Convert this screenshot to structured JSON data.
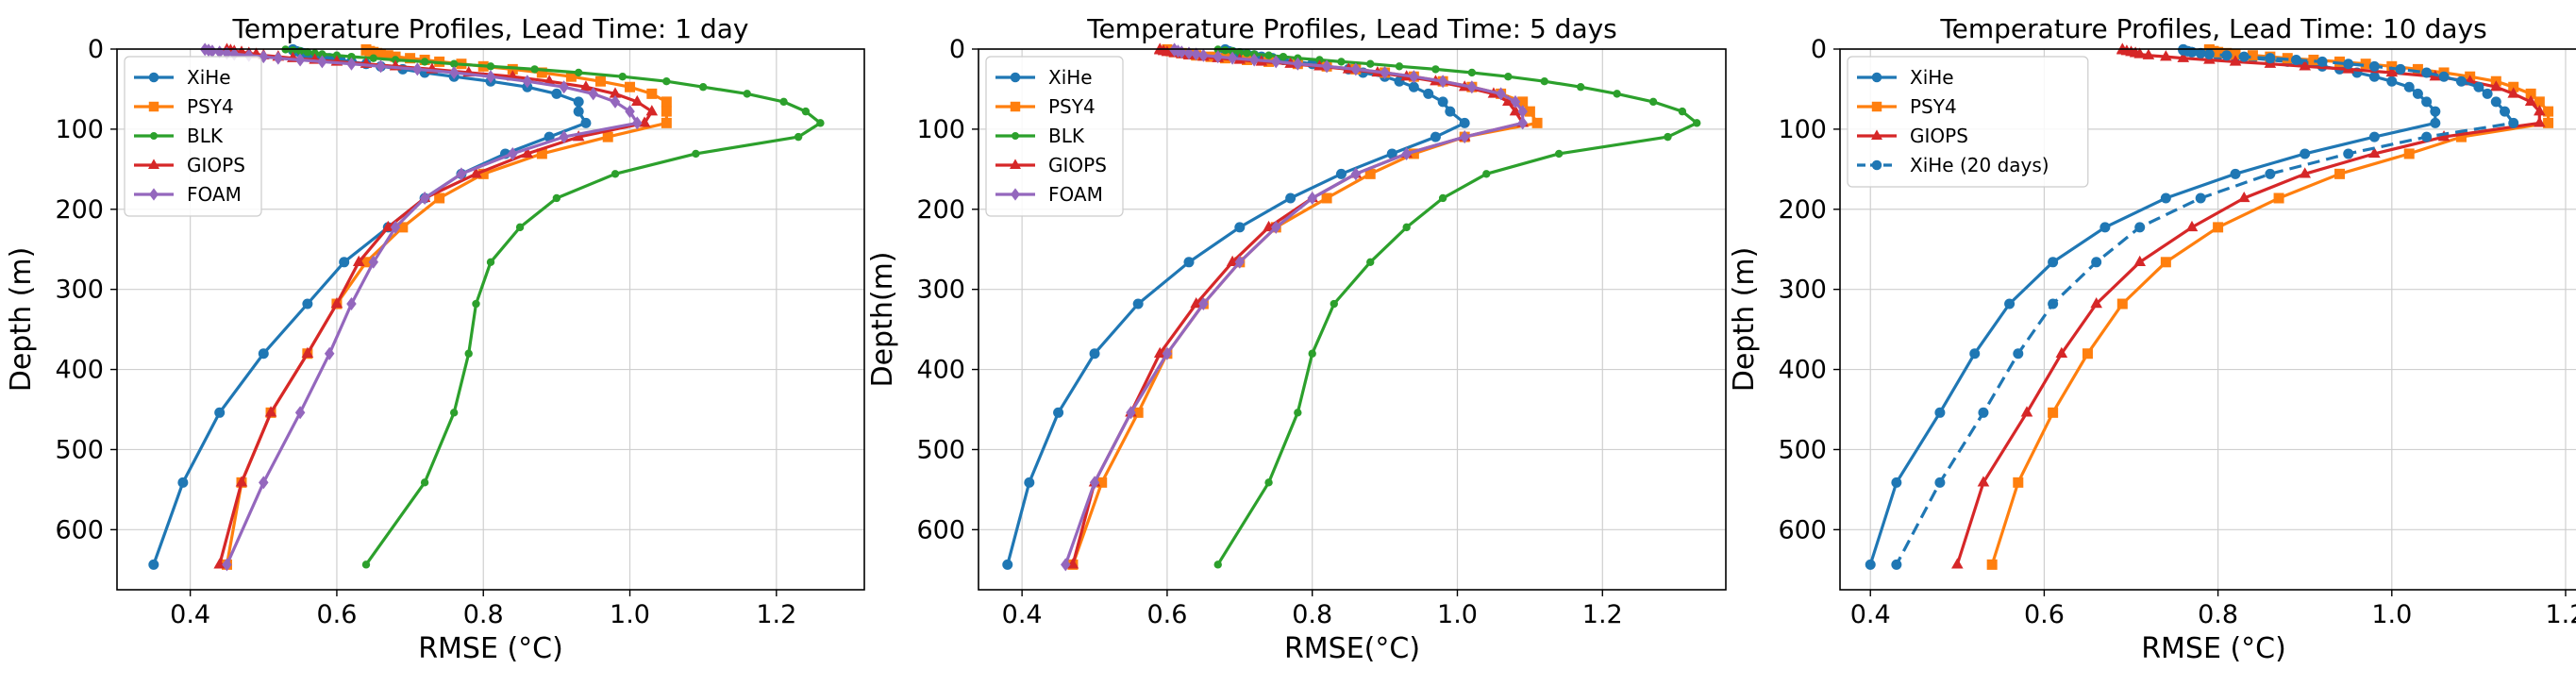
{
  "chart_data": [
    {
      "type": "line",
      "title": "Temperature Profiles, Lead Time: 1 day",
      "xlabel": "RMSE (°C)",
      "ylabel": "Depth (m)",
      "xlim": [
        0.3,
        1.32
      ],
      "ylim": [
        675,
        0
      ],
      "xticks": [
        "0.4",
        "0.6",
        "0.8",
        "1.0",
        "1.2"
      ],
      "yticks": [
        "0",
        "100",
        "200",
        "300",
        "400",
        "500",
        "600"
      ],
      "grid": true,
      "legend_position": "top-left",
      "depths": [
        0.5,
        1.5,
        2.6,
        3.8,
        5.1,
        6.4,
        7.9,
        9.6,
        11.4,
        13.5,
        15.8,
        18.5,
        21.6,
        25.2,
        29.4,
        34.4,
        40.3,
        47.4,
        55.8,
        65.8,
        77.9,
        92.3,
        109.7,
        130.7,
        155.9,
        186.1,
        222.5,
        266.0,
        318.1,
        380.2,
        453.9,
        541.1,
        643.6
      ],
      "series": [
        {
          "name": "XiHe",
          "color": "#1f77b4",
          "marker": "circle",
          "dashed": false,
          "values": [
            0.54,
            0.54,
            0.545,
            0.55,
            0.555,
            0.56,
            0.57,
            0.58,
            0.59,
            0.605,
            0.62,
            0.64,
            0.66,
            0.69,
            0.72,
            0.76,
            0.81,
            0.86,
            0.9,
            0.93,
            0.93,
            0.94,
            0.89,
            0.83,
            0.77,
            0.72,
            0.67,
            0.61,
            0.56,
            0.5,
            0.44,
            0.39,
            0.35
          ]
        },
        {
          "name": "PSY4",
          "color": "#ff7f0e",
          "marker": "square",
          "dashed": false,
          "values": [
            0.64,
            0.64,
            0.645,
            0.65,
            0.655,
            0.66,
            0.67,
            0.68,
            0.7,
            0.72,
            0.74,
            0.77,
            0.8,
            0.84,
            0.88,
            0.92,
            0.96,
            1.0,
            1.03,
            1.05,
            1.05,
            1.05,
            0.97,
            0.88,
            0.8,
            0.74,
            0.69,
            0.64,
            0.6,
            0.56,
            0.51,
            0.47,
            0.45
          ]
        },
        {
          "name": "BLK",
          "color": "#2ca02c",
          "marker": "circle_small",
          "dashed": false,
          "values": [
            0.53,
            0.54,
            0.55,
            0.56,
            0.57,
            0.58,
            0.6,
            0.62,
            0.65,
            0.68,
            0.72,
            0.76,
            0.81,
            0.87,
            0.93,
            0.99,
            1.05,
            1.1,
            1.16,
            1.21,
            1.24,
            1.26,
            1.23,
            1.09,
            0.98,
            0.9,
            0.85,
            0.81,
            0.79,
            0.78,
            0.76,
            0.72,
            0.64
          ]
        },
        {
          "name": "GIOPS",
          "color": "#d62728",
          "marker": "triangle",
          "dashed": false,
          "values": [
            0.45,
            0.455,
            0.46,
            0.47,
            0.48,
            0.49,
            0.5,
            0.52,
            0.54,
            0.57,
            0.6,
            0.64,
            0.68,
            0.73,
            0.78,
            0.84,
            0.89,
            0.94,
            0.98,
            1.01,
            1.03,
            1.02,
            0.93,
            0.86,
            0.79,
            0.72,
            0.67,
            0.63,
            0.6,
            0.56,
            0.51,
            0.47,
            0.44
          ]
        },
        {
          "name": "FOAM",
          "color": "#9467bd",
          "marker": "diamond",
          "dashed": false,
          "values": [
            0.42,
            0.425,
            0.43,
            0.44,
            0.45,
            0.46,
            0.48,
            0.5,
            0.52,
            0.55,
            0.58,
            0.62,
            0.66,
            0.71,
            0.76,
            0.81,
            0.86,
            0.91,
            0.95,
            0.98,
            1.0,
            1.01,
            0.91,
            0.84,
            0.77,
            0.72,
            0.68,
            0.65,
            0.62,
            0.59,
            0.55,
            0.5,
            0.45
          ]
        }
      ]
    },
    {
      "type": "line",
      "title": "Temperature Profiles, Lead Time: 5 days",
      "xlabel": "RMSE(°C)",
      "ylabel": "Depth(m)",
      "xlim": [
        0.34,
        1.37
      ],
      "ylim": [
        675,
        0
      ],
      "xticks": [
        "0.4",
        "0.6",
        "0.8",
        "1.0",
        "1.2"
      ],
      "yticks": [
        "0",
        "100",
        "200",
        "300",
        "400",
        "500",
        "600"
      ],
      "grid": true,
      "legend_position": "top-left",
      "depths": [
        0.5,
        1.5,
        2.6,
        3.8,
        5.1,
        6.4,
        7.9,
        9.6,
        11.4,
        13.5,
        15.8,
        18.5,
        21.6,
        25.2,
        29.4,
        34.4,
        40.3,
        47.4,
        55.8,
        65.8,
        77.9,
        92.3,
        109.7,
        130.7,
        155.9,
        186.1,
        222.5,
        266.0,
        318.1,
        380.2,
        453.9,
        541.1,
        643.6
      ],
      "series": [
        {
          "name": "XiHe",
          "color": "#1f77b4",
          "marker": "circle",
          "dashed": false,
          "values": [
            0.68,
            0.68,
            0.685,
            0.69,
            0.7,
            0.71,
            0.72,
            0.73,
            0.745,
            0.76,
            0.78,
            0.8,
            0.82,
            0.85,
            0.87,
            0.9,
            0.92,
            0.94,
            0.96,
            0.98,
            0.99,
            1.01,
            0.97,
            0.91,
            0.84,
            0.77,
            0.7,
            0.63,
            0.56,
            0.5,
            0.45,
            0.41,
            0.38
          ]
        },
        {
          "name": "PSY4",
          "color": "#ff7f0e",
          "marker": "square",
          "dashed": false,
          "values": [
            0.6,
            0.6,
            0.605,
            0.61,
            0.62,
            0.63,
            0.64,
            0.66,
            0.68,
            0.71,
            0.74,
            0.78,
            0.82,
            0.86,
            0.9,
            0.94,
            0.98,
            1.02,
            1.06,
            1.09,
            1.1,
            1.11,
            1.01,
            0.94,
            0.88,
            0.82,
            0.75,
            0.7,
            0.65,
            0.6,
            0.56,
            0.51,
            0.47
          ]
        },
        {
          "name": "BLK",
          "color": "#2ca02c",
          "marker": "circle_small",
          "dashed": false,
          "values": [
            0.67,
            0.68,
            0.69,
            0.7,
            0.71,
            0.72,
            0.74,
            0.76,
            0.78,
            0.81,
            0.84,
            0.88,
            0.92,
            0.97,
            1.02,
            1.07,
            1.12,
            1.17,
            1.22,
            1.27,
            1.31,
            1.33,
            1.29,
            1.14,
            1.04,
            0.98,
            0.93,
            0.88,
            0.83,
            0.8,
            0.78,
            0.74,
            0.67
          ]
        },
        {
          "name": "GIOPS",
          "color": "#d62728",
          "marker": "triangle",
          "dashed": false,
          "values": [
            0.59,
            0.59,
            0.595,
            0.6,
            0.61,
            0.62,
            0.63,
            0.65,
            0.67,
            0.7,
            0.73,
            0.77,
            0.81,
            0.85,
            0.89,
            0.93,
            0.97,
            1.01,
            1.05,
            1.07,
            1.08,
            1.09,
            1.01,
            0.93,
            0.86,
            0.8,
            0.74,
            0.69,
            0.64,
            0.59,
            0.55,
            0.5,
            0.47
          ]
        },
        {
          "name": "FOAM",
          "color": "#9467bd",
          "marker": "diamond",
          "dashed": false,
          "values": [
            0.61,
            0.61,
            0.615,
            0.62,
            0.63,
            0.64,
            0.65,
            0.67,
            0.69,
            0.72,
            0.75,
            0.78,
            0.82,
            0.86,
            0.9,
            0.94,
            0.98,
            1.02,
            1.06,
            1.08,
            1.09,
            1.09,
            1.01,
            0.93,
            0.86,
            0.8,
            0.75,
            0.7,
            0.65,
            0.6,
            0.55,
            0.5,
            0.46
          ]
        }
      ]
    },
    {
      "type": "line",
      "title": "Temperature Profiles, Lead Time: 10 days",
      "xlabel": "RMSE (°C)",
      "ylabel": "Depth (m)",
      "xlim": [
        0.365,
        1.225
      ],
      "ylim": [
        675,
        0
      ],
      "xticks": [
        "0.4",
        "0.6",
        "0.8",
        "1.0",
        "1.2"
      ],
      "yticks": [
        "0",
        "100",
        "200",
        "300",
        "400",
        "500",
        "600"
      ],
      "grid": true,
      "legend_position": "top-left",
      "depths": [
        0.5,
        1.5,
        2.6,
        3.8,
        5.1,
        6.4,
        7.9,
        9.6,
        11.4,
        13.5,
        15.8,
        18.5,
        21.6,
        25.2,
        29.4,
        34.4,
        40.3,
        47.4,
        55.8,
        65.8,
        77.9,
        92.3,
        109.7,
        130.7,
        155.9,
        186.1,
        222.5,
        266.0,
        318.1,
        380.2,
        453.9,
        541.1,
        643.6
      ],
      "series": [
        {
          "name": "XiHe",
          "color": "#1f77b4",
          "marker": "circle",
          "dashed": false,
          "values": [
            0.76,
            0.76,
            0.765,
            0.77,
            0.78,
            0.79,
            0.8,
            0.82,
            0.84,
            0.86,
            0.88,
            0.9,
            0.92,
            0.94,
            0.96,
            0.98,
            1.0,
            1.02,
            1.03,
            1.04,
            1.05,
            1.05,
            0.98,
            0.9,
            0.82,
            0.74,
            0.67,
            0.61,
            0.56,
            0.52,
            0.48,
            0.43,
            0.4
          ]
        },
        {
          "name": "PSY4",
          "color": "#ff7f0e",
          "marker": "square",
          "dashed": false,
          "values": [
            0.79,
            0.79,
            0.795,
            0.8,
            0.81,
            0.82,
            0.84,
            0.86,
            0.88,
            0.91,
            0.94,
            0.97,
            1.0,
            1.03,
            1.06,
            1.09,
            1.12,
            1.14,
            1.16,
            1.17,
            1.18,
            1.18,
            1.08,
            1.02,
            0.94,
            0.87,
            0.8,
            0.74,
            0.69,
            0.65,
            0.61,
            0.57,
            0.54
          ]
        },
        {
          "name": "GIOPS",
          "color": "#d62728",
          "marker": "triangle",
          "dashed": false,
          "values": [
            0.69,
            0.69,
            0.695,
            0.7,
            0.705,
            0.71,
            0.72,
            0.74,
            0.76,
            0.79,
            0.82,
            0.86,
            0.9,
            0.95,
            1.0,
            1.05,
            1.09,
            1.12,
            1.14,
            1.16,
            1.17,
            1.17,
            1.06,
            0.98,
            0.9,
            0.83,
            0.77,
            0.71,
            0.66,
            0.62,
            0.58,
            0.53,
            0.5
          ]
        },
        {
          "name": "XiHe (20 days)",
          "color": "#1f77b4",
          "marker": "circle",
          "dashed": true,
          "values": [
            0.76,
            0.76,
            0.765,
            0.77,
            0.78,
            0.79,
            0.81,
            0.83,
            0.86,
            0.89,
            0.92,
            0.95,
            0.98,
            1.01,
            1.04,
            1.06,
            1.08,
            1.1,
            1.11,
            1.12,
            1.13,
            1.14,
            1.04,
            0.95,
            0.86,
            0.78,
            0.71,
            0.66,
            0.61,
            0.57,
            0.53,
            0.48,
            0.43
          ]
        }
      ]
    }
  ]
}
